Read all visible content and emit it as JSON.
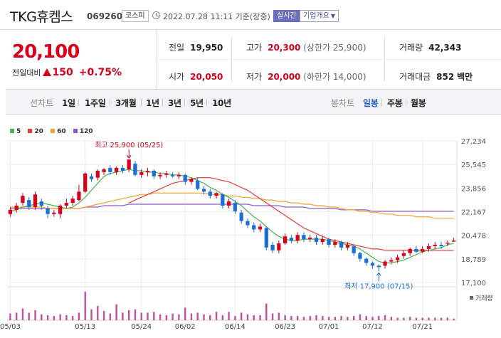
{
  "header": {
    "name": "TKG휴켐스",
    "code": "069260",
    "market": "코스피",
    "timestamp": "2022.07.28 11:11 기준(장중)",
    "realtime": "실시간",
    "overview": "기업개요"
  },
  "price": {
    "current": "20,100",
    "change_label": "전일대비",
    "change": "150",
    "change_pct": "+0.75%"
  },
  "stats": {
    "prev_close": {
      "label": "전일",
      "value": "19,950"
    },
    "open": {
      "label": "시가",
      "value": "20,050"
    },
    "high": {
      "label": "고가",
      "value": "20,300",
      "sub": "(상한가 25,900)"
    },
    "low": {
      "label": "저가",
      "value": "20,000",
      "sub": "(하한가 14,000)"
    },
    "volume": {
      "label": "거래량",
      "value": "42,343"
    },
    "amount": {
      "label": "거래대금",
      "value": "852",
      "unit": "백만"
    }
  },
  "period_bar": {
    "line_label": "선차트",
    "periods": [
      "1일",
      "1주일",
      "3개월",
      "1년",
      "3년",
      "5년",
      "10년"
    ],
    "candle_label": "봉차트",
    "candles": [
      "일봉",
      "주봉",
      "월봉"
    ],
    "active_candle": "일봉"
  },
  "colors": {
    "up": "#d6001c",
    "down": "#1a6fd6",
    "ma5": "#4caf50",
    "ma20": "#e53935",
    "ma60": "#f0a030",
    "ma120": "#8a5cc8",
    "volume": "#c24fa0"
  },
  "chart_data": {
    "type": "candlestick",
    "legend": [
      "5",
      "20",
      "60",
      "120"
    ],
    "y_ticks": [
      "27,234",
      "25,545",
      "23,856",
      "22,167",
      "20,478",
      "18,789",
      "17,100"
    ],
    "ylim": [
      17100,
      27234
    ],
    "x_ticks": [
      "05/03",
      "05/13",
      "05/24",
      "06/02",
      "06/14",
      "06/23",
      "07/01",
      "07/12",
      "07/21"
    ],
    "x_tick_index": [
      0,
      12,
      21,
      28,
      36,
      44,
      51,
      58,
      66
    ],
    "high_label": "최고 25,900 (05/25)",
    "low_label": "최저 17,900 (07/15)",
    "volume_label": "거래량",
    "candles": [
      {
        "o": 22000,
        "c": 22300,
        "h": 22500,
        "l": 21800
      },
      {
        "o": 22300,
        "c": 22600,
        "h": 22800,
        "l": 22100
      },
      {
        "o": 22800,
        "c": 23300,
        "h": 23500,
        "l": 22600
      },
      {
        "o": 23000,
        "c": 22500,
        "h": 23200,
        "l": 22300
      },
      {
        "o": 22500,
        "c": 23400,
        "h": 23600,
        "l": 22300
      },
      {
        "o": 22900,
        "c": 22600,
        "h": 23100,
        "l": 22300
      },
      {
        "o": 22400,
        "c": 22000,
        "h": 22600,
        "l": 21700
      },
      {
        "o": 22000,
        "c": 22100,
        "h": 22300,
        "l": 21800
      },
      {
        "o": 22000,
        "c": 22600,
        "h": 22700,
        "l": 21700
      },
      {
        "o": 22600,
        "c": 22800,
        "h": 23100,
        "l": 22400
      },
      {
        "o": 22800,
        "c": 23100,
        "h": 23300,
        "l": 22600
      },
      {
        "o": 23000,
        "c": 23600,
        "h": 24100,
        "l": 22900
      },
      {
        "o": 23600,
        "c": 24900,
        "h": 25000,
        "l": 23500
      },
      {
        "o": 24700,
        "c": 24500,
        "h": 24900,
        "l": 24300
      },
      {
        "o": 24600,
        "c": 25100,
        "h": 25200,
        "l": 24400
      },
      {
        "o": 25000,
        "c": 25200,
        "h": 25300,
        "l": 24800
      },
      {
        "o": 25300,
        "c": 25000,
        "h": 25500,
        "l": 24800
      },
      {
        "o": 25000,
        "c": 25300,
        "h": 25400,
        "l": 24800
      },
      {
        "o": 25300,
        "c": 25100,
        "h": 25500,
        "l": 24900
      },
      {
        "o": 25200,
        "c": 25900,
        "h": 25900,
        "l": 25000
      },
      {
        "o": 25600,
        "c": 24800,
        "h": 25800,
        "l": 24700
      },
      {
        "o": 24800,
        "c": 25000,
        "h": 25200,
        "l": 24600
      },
      {
        "o": 25000,
        "c": 25100,
        "h": 25300,
        "l": 24700
      },
      {
        "o": 25100,
        "c": 24700,
        "h": 25200,
        "l": 24500
      },
      {
        "o": 24700,
        "c": 24800,
        "h": 25000,
        "l": 24500
      },
      {
        "o": 24800,
        "c": 24900,
        "h": 25100,
        "l": 24600
      },
      {
        "o": 24800,
        "c": 24700,
        "h": 25000,
        "l": 24600
      },
      {
        "o": 24700,
        "c": 24800,
        "h": 25000,
        "l": 24500
      },
      {
        "o": 24800,
        "c": 24300,
        "h": 24900,
        "l": 24100
      },
      {
        "o": 24300,
        "c": 24500,
        "h": 24600,
        "l": 24100
      },
      {
        "o": 24400,
        "c": 23800,
        "h": 24600,
        "l": 23700
      },
      {
        "o": 23800,
        "c": 23600,
        "h": 24000,
        "l": 23400
      },
      {
        "o": 23600,
        "c": 23300,
        "h": 23800,
        "l": 23100
      },
      {
        "o": 23300,
        "c": 23500,
        "h": 23600,
        "l": 23100
      },
      {
        "o": 23400,
        "c": 22600,
        "h": 23500,
        "l": 22400
      },
      {
        "o": 22600,
        "c": 22900,
        "h": 23100,
        "l": 22400
      },
      {
        "o": 22800,
        "c": 22200,
        "h": 23000,
        "l": 22000
      },
      {
        "o": 22100,
        "c": 21500,
        "h": 22300,
        "l": 21300
      },
      {
        "o": 21500,
        "c": 21200,
        "h": 21700,
        "l": 21000
      },
      {
        "o": 21200,
        "c": 20900,
        "h": 21400,
        "l": 20700
      },
      {
        "o": 20900,
        "c": 21100,
        "h": 21300,
        "l": 20700
      },
      {
        "o": 21000,
        "c": 19600,
        "h": 21100,
        "l": 19400
      },
      {
        "o": 19800,
        "c": 19400,
        "h": 20000,
        "l": 19200
      },
      {
        "o": 19400,
        "c": 19900,
        "h": 20100,
        "l": 19200
      },
      {
        "o": 19900,
        "c": 20400,
        "h": 20600,
        "l": 19800
      },
      {
        "o": 20300,
        "c": 20100,
        "h": 20500,
        "l": 19900
      },
      {
        "o": 20100,
        "c": 20500,
        "h": 20700,
        "l": 19900
      },
      {
        "o": 20500,
        "c": 20200,
        "h": 20700,
        "l": 20000
      },
      {
        "o": 20200,
        "c": 20300,
        "h": 20500,
        "l": 20000
      },
      {
        "o": 20300,
        "c": 20000,
        "h": 20500,
        "l": 19800
      },
      {
        "o": 20000,
        "c": 20200,
        "h": 20400,
        "l": 19800
      },
      {
        "o": 20200,
        "c": 19800,
        "h": 20300,
        "l": 19600
      },
      {
        "o": 19800,
        "c": 20000,
        "h": 20200,
        "l": 19600
      },
      {
        "o": 20000,
        "c": 19600,
        "h": 20100,
        "l": 19400
      },
      {
        "o": 19600,
        "c": 19800,
        "h": 20000,
        "l": 19400
      },
      {
        "o": 19700,
        "c": 19200,
        "h": 19800,
        "l": 19000
      },
      {
        "o": 19200,
        "c": 18800,
        "h": 19300,
        "l": 18600
      },
      {
        "o": 18800,
        "c": 18500,
        "h": 18900,
        "l": 18300
      },
      {
        "o": 18500,
        "c": 18300,
        "h": 18600,
        "l": 18100
      },
      {
        "o": 18300,
        "c": 18200,
        "h": 18400,
        "l": 17900
      },
      {
        "o": 18300,
        "c": 18600,
        "h": 18700,
        "l": 18100
      },
      {
        "o": 18600,
        "c": 18700,
        "h": 18900,
        "l": 18400
      },
      {
        "o": 18700,
        "c": 18900,
        "h": 19100,
        "l": 18500
      },
      {
        "o": 19000,
        "c": 19200,
        "h": 19400,
        "l": 18800
      },
      {
        "o": 19200,
        "c": 19500,
        "h": 19600,
        "l": 19000
      },
      {
        "o": 19500,
        "c": 19300,
        "h": 19700,
        "l": 19200
      },
      {
        "o": 19300,
        "c": 19500,
        "h": 19700,
        "l": 19200
      },
      {
        "o": 19500,
        "c": 19700,
        "h": 19900,
        "l": 19300
      },
      {
        "o": 19700,
        "c": 19800,
        "h": 20000,
        "l": 19500
      },
      {
        "o": 19800,
        "c": 19700,
        "h": 20000,
        "l": 19500
      },
      {
        "o": 19900,
        "c": 19950,
        "h": 20100,
        "l": 19700
      },
      {
        "o": 20050,
        "c": 20100,
        "h": 20300,
        "l": 20000
      }
    ],
    "ma5": [
      22200,
      22300,
      22500,
      22600,
      22700,
      22800,
      22700,
      22600,
      22500,
      22400,
      22500,
      22800,
      23200,
      23700,
      24200,
      24700,
      24900,
      25000,
      25100,
      25200,
      25100,
      25100,
      25000,
      25000,
      24900,
      24900,
      24800,
      24800,
      24700,
      24600,
      24400,
      24200,
      23900,
      23700,
      23400,
      23200,
      22900,
      22600,
      22200,
      21800,
      21500,
      21100,
      20700,
      20400,
      20200,
      20100,
      20100,
      20200,
      20200,
      20200,
      20200,
      20100,
      20000,
      19900,
      19800,
      19700,
      19500,
      19200,
      18900,
      18600,
      18500,
      18500,
      18600,
      18700,
      18900,
      19100,
      19300,
      19400,
      19500,
      19600,
      19800,
      19900
    ],
    "ma20": [
      null,
      null,
      null,
      null,
      null,
      null,
      null,
      null,
      null,
      null,
      null,
      null,
      null,
      null,
      null,
      null,
      null,
      null,
      null,
      22800,
      23000,
      23200,
      23400,
      23600,
      23800,
      24000,
      24200,
      24300,
      24400,
      24500,
      24600,
      24600,
      24600,
      24500,
      24400,
      24300,
      24100,
      23900,
      23700,
      23400,
      23100,
      22800,
      22500,
      22200,
      21900,
      21600,
      21300,
      21000,
      20800,
      20600,
      20400,
      20200,
      20100,
      20000,
      19900,
      19800,
      19700,
      19600,
      19500,
      19500,
      19400,
      19400,
      19400,
      19400,
      19400,
      19400,
      19400,
      19400,
      19400,
      19400,
      19400,
      19400
    ],
    "ma60": [
      22500,
      22500,
      22500,
      22500,
      22500,
      22500,
      22400,
      22400,
      22400,
      22400,
      22400,
      22400,
      22500,
      22600,
      22700,
      22800,
      22900,
      23000,
      23100,
      23200,
      23300,
      23400,
      23400,
      23500,
      23500,
      23500,
      23500,
      23500,
      23500,
      23500,
      23500,
      23500,
      23400,
      23400,
      23400,
      23300,
      23300,
      23200,
      23200,
      23100,
      23100,
      23000,
      23000,
      22900,
      22900,
      22800,
      22800,
      22700,
      22700,
      22600,
      22600,
      22500,
      22500,
      22400,
      22300,
      22300,
      22200,
      22200,
      22100,
      22100,
      22000,
      22000,
      21900,
      21900,
      21900,
      21800,
      21800,
      21800,
      21700,
      21700,
      21700,
      21700
    ],
    "ma120": [
      22400,
      22400,
      22400,
      22400,
      22400,
      22400,
      22400,
      22400,
      22400,
      22400,
      22400,
      22400,
      22500,
      22500,
      22500,
      22600,
      22600,
      22600,
      22600,
      22700,
      22700,
      22700,
      22700,
      22700,
      22700,
      22700,
      22700,
      22700,
      22700,
      22700,
      22700,
      22700,
      22700,
      22700,
      22700,
      22700,
      22700,
      22700,
      22700,
      22600,
      22600,
      22600,
      22600,
      22600,
      22500,
      22500,
      22500,
      22500,
      22400,
      22400,
      22400,
      22400,
      22400,
      22300,
      22300,
      22300,
      22300,
      22300,
      22200,
      22200,
      22200,
      22200,
      22200,
      22200,
      22200,
      22200,
      22200,
      22200,
      22200,
      22200,
      22200,
      22200
    ],
    "volumes": [
      8,
      9,
      14,
      9,
      12,
      7,
      6,
      5,
      7,
      6,
      5,
      9,
      34,
      13,
      17,
      11,
      8,
      19,
      9,
      12,
      13,
      9,
      9,
      10,
      7,
      6,
      8,
      7,
      15,
      8,
      9,
      7,
      6,
      10,
      6,
      10,
      5,
      9,
      7,
      6,
      6,
      20,
      8,
      9,
      6,
      5,
      5,
      4,
      5,
      6,
      5,
      4,
      4,
      5,
      4,
      5,
      7,
      5,
      4,
      5,
      6,
      4,
      3,
      3,
      4,
      3,
      3,
      3,
      3,
      3,
      3,
      2
    ]
  }
}
